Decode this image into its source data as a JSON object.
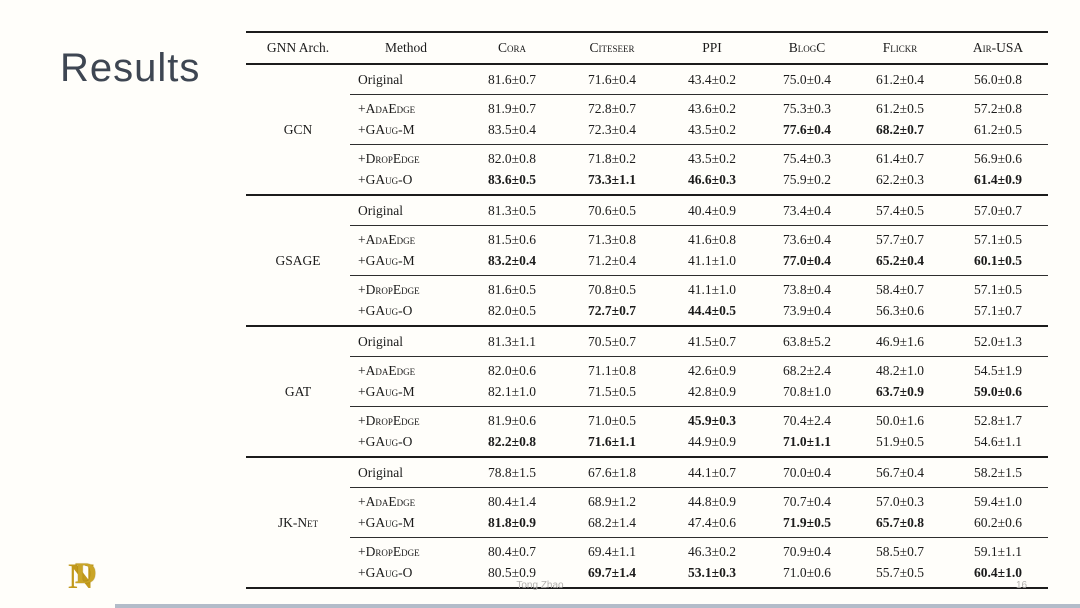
{
  "slide": {
    "title": "Results",
    "footer": {
      "author": "Tong Zhao",
      "page": "16"
    },
    "logo": "ND-monogram"
  },
  "colors": {
    "title_text": "#3e4652",
    "logo_gold": "#c7a227",
    "footer_gray": "#b3b1ae",
    "table_rule": "#1c1c1c"
  },
  "table": {
    "headers": [
      "GNN Arch.",
      "Method",
      "Cora",
      "Citeseer",
      "PPI",
      "BlogC",
      "Flickr",
      "Air-USA"
    ],
    "groups": [
      {
        "arch": "GCN",
        "rows": [
          {
            "method": "Original",
            "smallcaps": false,
            "values": [
              "81.6±0.7",
              "71.6±0.4",
              "43.4±0.2",
              "75.0±0.4",
              "61.2±0.4",
              "56.0±0.8"
            ],
            "bold": [
              false,
              false,
              false,
              false,
              false,
              false
            ]
          },
          {
            "method": "+AdaEdge",
            "smallcaps": true,
            "values": [
              "81.9±0.7",
              "72.8±0.7",
              "43.6±0.2",
              "75.3±0.3",
              "61.2±0.5",
              "57.2±0.8"
            ],
            "bold": [
              false,
              false,
              false,
              false,
              false,
              false
            ]
          },
          {
            "method": "+GAug-M",
            "smallcaps": true,
            "values": [
              "83.5±0.4",
              "72.3±0.4",
              "43.5±0.2",
              "77.6±0.4",
              "68.2±0.7",
              "61.2±0.5"
            ],
            "bold": [
              false,
              false,
              false,
              true,
              true,
              false
            ]
          },
          {
            "method": "+DropEdge",
            "smallcaps": true,
            "values": [
              "82.0±0.8",
              "71.8±0.2",
              "43.5±0.2",
              "75.4±0.3",
              "61.4±0.7",
              "56.9±0.6"
            ],
            "bold": [
              false,
              false,
              false,
              false,
              false,
              false
            ]
          },
          {
            "method": "+GAug-O",
            "smallcaps": true,
            "values": [
              "83.6±0.5",
              "73.3±1.1",
              "46.6±0.3",
              "75.9±0.2",
              "62.2±0.3",
              "61.4±0.9"
            ],
            "bold": [
              true,
              true,
              true,
              false,
              false,
              true
            ]
          }
        ]
      },
      {
        "arch": "GSAGE",
        "rows": [
          {
            "method": "Original",
            "smallcaps": false,
            "values": [
              "81.3±0.5",
              "70.6±0.5",
              "40.4±0.9",
              "73.4±0.4",
              "57.4±0.5",
              "57.0±0.7"
            ],
            "bold": [
              false,
              false,
              false,
              false,
              false,
              false
            ]
          },
          {
            "method": "+AdaEdge",
            "smallcaps": true,
            "values": [
              "81.5±0.6",
              "71.3±0.8",
              "41.6±0.8",
              "73.6±0.4",
              "57.7±0.7",
              "57.1±0.5"
            ],
            "bold": [
              false,
              false,
              false,
              false,
              false,
              false
            ]
          },
          {
            "method": "+GAug-M",
            "smallcaps": true,
            "values": [
              "83.2±0.4",
              "71.2±0.4",
              "41.1±1.0",
              "77.0±0.4",
              "65.2±0.4",
              "60.1±0.5"
            ],
            "bold": [
              true,
              false,
              false,
              true,
              true,
              true
            ]
          },
          {
            "method": "+DropEdge",
            "smallcaps": true,
            "values": [
              "81.6±0.5",
              "70.8±0.5",
              "41.1±1.0",
              "73.8±0.4",
              "58.4±0.7",
              "57.1±0.5"
            ],
            "bold": [
              false,
              false,
              false,
              false,
              false,
              false
            ]
          },
          {
            "method": "+GAug-O",
            "smallcaps": true,
            "values": [
              "82.0±0.5",
              "72.7±0.7",
              "44.4±0.5",
              "73.9±0.4",
              "56.3±0.6",
              "57.1±0.7"
            ],
            "bold": [
              false,
              true,
              true,
              false,
              false,
              false
            ]
          }
        ]
      },
      {
        "arch": "GAT",
        "rows": [
          {
            "method": "Original",
            "smallcaps": false,
            "values": [
              "81.3±1.1",
              "70.5±0.7",
              "41.5±0.7",
              "63.8±5.2",
              "46.9±1.6",
              "52.0±1.3"
            ],
            "bold": [
              false,
              false,
              false,
              false,
              false,
              false
            ]
          },
          {
            "method": "+AdaEdge",
            "smallcaps": true,
            "values": [
              "82.0±0.6",
              "71.1±0.8",
              "42.6±0.9",
              "68.2±2.4",
              "48.2±1.0",
              "54.5±1.9"
            ],
            "bold": [
              false,
              false,
              false,
              false,
              false,
              false
            ]
          },
          {
            "method": "+GAug-M",
            "smallcaps": true,
            "values": [
              "82.1±1.0",
              "71.5±0.5",
              "42.8±0.9",
              "70.8±1.0",
              "63.7±0.9",
              "59.0±0.6"
            ],
            "bold": [
              false,
              false,
              false,
              false,
              true,
              true
            ]
          },
          {
            "method": "+DropEdge",
            "smallcaps": true,
            "values": [
              "81.9±0.6",
              "71.0±0.5",
              "45.9±0.3",
              "70.4±2.4",
              "50.0±1.6",
              "52.8±1.7"
            ],
            "bold": [
              false,
              false,
              true,
              false,
              false,
              false
            ]
          },
          {
            "method": "+GAug-O",
            "smallcaps": true,
            "values": [
              "82.2±0.8",
              "71.6±1.1",
              "44.9±0.9",
              "71.0±1.1",
              "51.9±0.5",
              "54.6±1.1"
            ],
            "bold": [
              true,
              true,
              false,
              true,
              false,
              false
            ]
          }
        ]
      },
      {
        "arch": "JK-Net",
        "rows": [
          {
            "method": "Original",
            "smallcaps": false,
            "values": [
              "78.8±1.5",
              "67.6±1.8",
              "44.1±0.7",
              "70.0±0.4",
              "56.7±0.4",
              "58.2±1.5"
            ],
            "bold": [
              false,
              false,
              false,
              false,
              false,
              false
            ]
          },
          {
            "method": "+AdaEdge",
            "smallcaps": true,
            "values": [
              "80.4±1.4",
              "68.9±1.2",
              "44.8±0.9",
              "70.7±0.4",
              "57.0±0.3",
              "59.4±1.0"
            ],
            "bold": [
              false,
              false,
              false,
              false,
              false,
              false
            ]
          },
          {
            "method": "+GAug-M",
            "smallcaps": true,
            "values": [
              "81.8±0.9",
              "68.2±1.4",
              "47.4±0.6",
              "71.9±0.5",
              "65.7±0.8",
              "60.2±0.6"
            ],
            "bold": [
              true,
              false,
              false,
              true,
              true,
              false
            ]
          },
          {
            "method": "+DropEdge",
            "smallcaps": true,
            "values": [
              "80.4±0.7",
              "69.4±1.1",
              "46.3±0.2",
              "70.9±0.4",
              "58.5±0.7",
              "59.1±1.1"
            ],
            "bold": [
              false,
              false,
              false,
              false,
              false,
              false
            ]
          },
          {
            "method": "+GAug-O",
            "smallcaps": true,
            "values": [
              "80.5±0.9",
              "69.7±1.4",
              "53.1±0.3",
              "71.0±0.6",
              "55.7±0.5",
              "60.4±1.0"
            ],
            "bold": [
              false,
              true,
              true,
              false,
              false,
              true
            ]
          }
        ]
      }
    ]
  }
}
